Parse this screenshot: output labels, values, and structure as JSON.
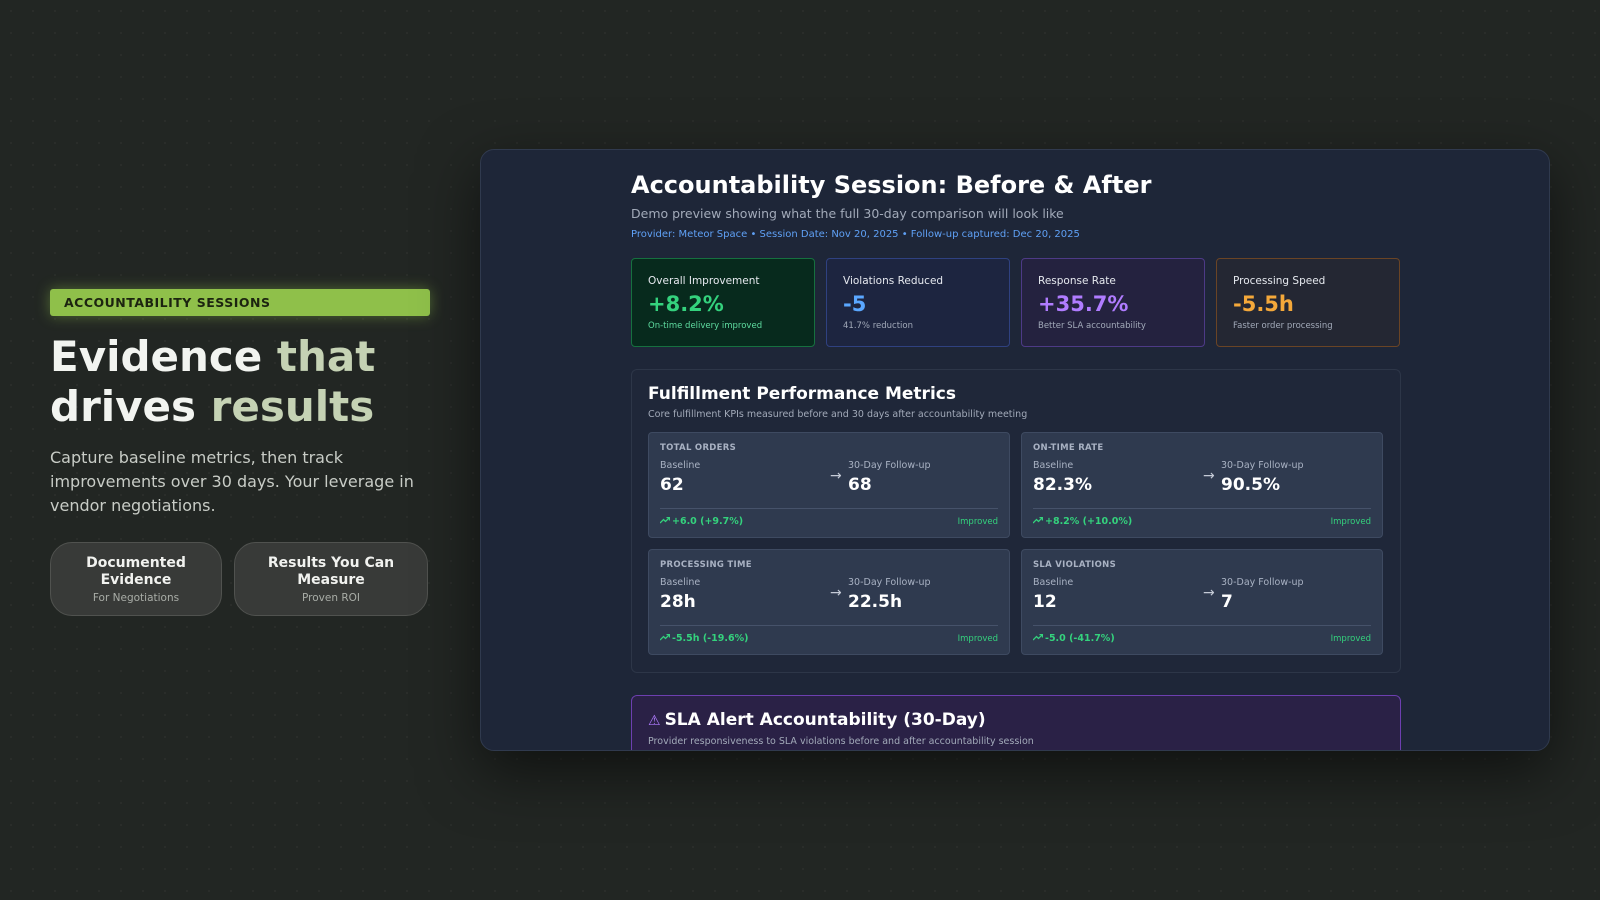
{
  "hero": {
    "badge": "ACCOUNTABILITY SESSIONS",
    "headline_1": "Evidence ",
    "headline_accent_1": "that",
    "headline_2": "drives ",
    "headline_accent_2": "results",
    "lead": "Capture baseline metrics, then track improvements over 30 days. Your leverage in vendor negotiations.",
    "pills": [
      {
        "title": "Documented Evidence",
        "sub": "For Negotiations"
      },
      {
        "title": "Results You Can Measure",
        "sub": "Proven ROI"
      }
    ]
  },
  "preview": {
    "title": "Accountability Session: Before & After",
    "subtitle": "Demo preview showing what the full 30-day comparison will look like",
    "meta": "Provider: Meteor Space • Session Date: Nov 20, 2025 • Follow-up captured: Dec 20, 2025",
    "stats": [
      {
        "label": "Overall Improvement",
        "value": "+8.2%",
        "desc": "On-time delivery improved",
        "color": "#34d27d"
      },
      {
        "label": "Violations Reduced",
        "value": "-5",
        "desc": "41.7% reduction",
        "color": "#5aa7ff"
      },
      {
        "label": "Response Rate",
        "value": "+35.7%",
        "desc": "Better SLA accountability",
        "color": "#b07cff"
      },
      {
        "label": "Processing Speed",
        "value": "-5.5h",
        "desc": "Faster order processing",
        "color": "#f4a83a"
      }
    ],
    "metrics": {
      "title": "Fulfillment Performance Metrics",
      "subtitle": "Core fulfillment KPIs measured before and 30 days after accountability meeting",
      "baseline_label": "Baseline",
      "followup_label": "30-Day Follow-up",
      "arrow": "→",
      "cards": [
        {
          "title": "TOTAL ORDERS",
          "baseline": "62",
          "followup": "68",
          "change": "+6.0 (+9.7%)",
          "status": "Improved"
        },
        {
          "title": "ON-TIME RATE",
          "baseline": "82.3%",
          "followup": "90.5%",
          "change": "+8.2% (+10.0%)",
          "status": "Improved"
        },
        {
          "title": "PROCESSING TIME",
          "baseline": "28h",
          "followup": "22.5h",
          "change": "-5.5h (-19.6%)",
          "status": "Improved"
        },
        {
          "title": "SLA VIOLATIONS",
          "baseline": "12",
          "followup": "7",
          "change": "-5.0 (-41.7%)",
          "status": "Improved"
        }
      ]
    },
    "alert": {
      "title": "SLA Alert Accountability (30-Day)",
      "subtitle": "Provider responsiveness to SLA violations before and after accountability session"
    }
  },
  "icons": {
    "trend": "trending-up-icon",
    "warning": "warning-triangle-icon",
    "arrow": "arrow-right-icon"
  }
}
